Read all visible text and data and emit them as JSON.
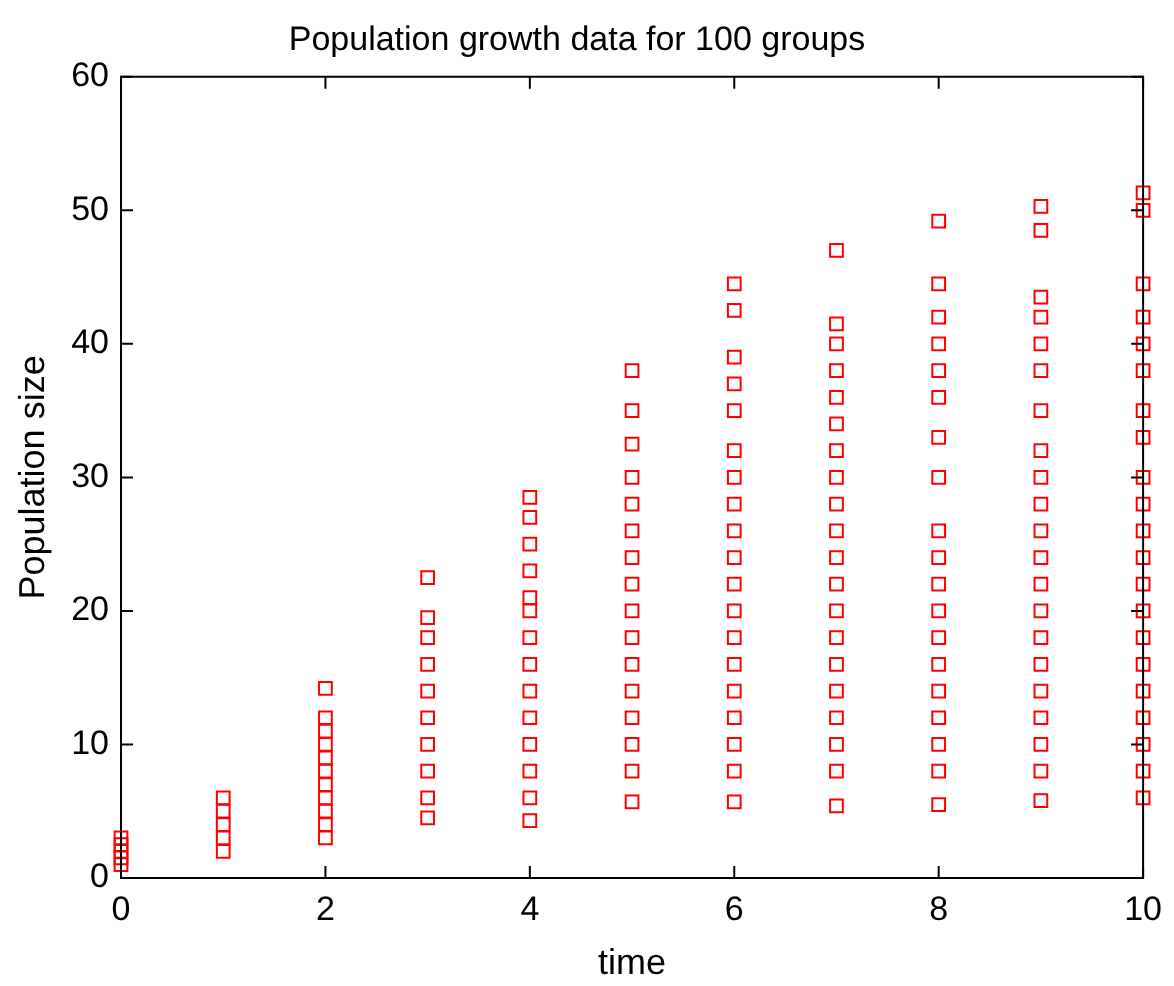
{
  "chart_data": {
    "type": "scatter",
    "title": "Population growth data for 100 groups",
    "xlabel": "time",
    "ylabel": "Population size",
    "x": [
      0,
      0,
      0,
      0,
      0,
      1,
      1,
      1,
      1,
      1,
      2,
      2,
      2,
      2,
      2,
      2,
      2,
      2,
      2,
      2,
      2,
      3,
      3,
      3,
      3,
      3,
      3,
      3,
      3,
      3,
      3,
      4,
      4,
      4,
      4,
      4,
      4,
      4,
      4,
      4,
      4,
      4,
      4,
      4,
      4,
      5,
      5,
      5,
      5,
      5,
      5,
      5,
      5,
      5,
      5,
      5,
      5,
      5,
      5,
      5,
      5,
      6,
      6,
      6,
      6,
      6,
      6,
      6,
      6,
      6,
      6,
      6,
      6,
      6,
      6,
      6,
      6,
      6,
      6,
      6,
      7,
      7,
      7,
      7,
      7,
      7,
      7,
      7,
      7,
      7,
      7,
      7,
      7,
      7,
      7,
      7,
      7,
      7,
      7,
      7,
      8,
      8,
      8,
      8,
      8,
      8,
      8,
      8,
      8,
      8,
      8,
      8,
      8,
      8,
      8,
      8,
      8,
      8,
      8,
      9,
      9,
      9,
      9,
      9,
      9,
      9,
      9,
      9,
      9,
      9,
      9,
      9,
      9,
      9,
      9,
      9,
      9,
      9,
      9,
      9,
      10,
      10,
      10,
      10,
      10,
      10,
      10,
      10,
      10,
      10,
      10,
      10,
      10,
      10,
      10,
      10,
      10,
      10,
      10,
      10,
      10
    ],
    "series": [
      {
        "color": "#ff0000",
        "values": [
          1,
          1.5,
          2,
          2.5,
          3,
          2,
          3,
          4,
          5,
          6,
          3,
          4,
          5,
          6,
          7,
          8,
          9,
          10,
          11,
          12,
          14.2,
          4.5,
          6,
          8,
          10,
          12,
          14,
          16,
          18,
          19.5,
          22.5,
          4.3,
          6,
          8,
          10,
          12,
          14,
          16,
          18,
          20,
          21,
          23,
          25,
          27,
          28.5,
          5.7,
          8,
          10,
          12,
          14,
          16,
          18,
          20,
          22,
          24,
          26,
          28,
          30,
          32.5,
          35,
          38,
          5.7,
          8,
          10,
          12,
          14,
          16,
          18,
          20,
          22,
          24,
          26,
          28,
          30,
          32,
          35,
          37,
          39,
          42.5,
          44.5,
          5.4,
          8,
          10,
          12,
          14,
          16,
          18,
          20,
          22,
          24,
          26,
          28,
          30,
          32,
          34,
          36,
          38,
          40,
          41.5,
          47,
          5.5,
          8,
          10,
          12,
          14,
          16,
          18,
          20,
          22,
          24,
          26,
          30,
          33,
          36,
          38,
          40,
          42,
          44.5,
          49.2,
          5.8,
          8,
          10,
          12,
          14,
          16,
          18,
          20,
          22,
          24,
          26,
          28,
          30,
          32,
          35,
          38,
          40,
          42,
          43.5,
          48.5,
          50.3,
          6,
          8,
          10,
          12,
          14,
          16,
          18,
          20,
          22,
          24,
          26,
          28,
          30,
          33,
          35,
          38,
          40,
          42,
          44.5,
          50,
          51.3
        ]
      }
    ],
    "xlim": [
      0,
      10
    ],
    "xticks": [
      0,
      2,
      4,
      6,
      8,
      10
    ],
    "ylim": [
      0,
      60
    ],
    "yticks": [
      0,
      10,
      20,
      30,
      40,
      50,
      60
    ],
    "marker": "square",
    "grid": false,
    "legend": false
  }
}
